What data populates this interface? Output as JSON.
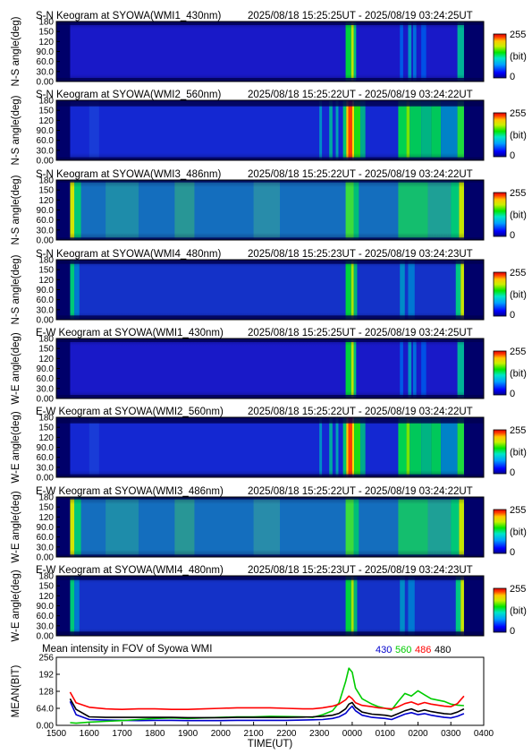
{
  "keograms": [
    {
      "title": "S-N Keogram at SYOWA(WMI1_430nm)",
      "time_range": "2025/08/18 15:25:25UT - 2025/08/19 03:24:25UT",
      "ylabel": "N-S angle(deg)",
      "profile": "n430"
    },
    {
      "title": "S-N Keogram at SYOWA(WMI2_560nm)",
      "time_range": "2025/08/18 15:25:22UT - 2025/08/19 03:24:22UT",
      "ylabel": "N-S angle(deg)",
      "profile": "g560"
    },
    {
      "title": "S-N Keogram at SYOWA(WMI3_486nm)",
      "time_range": "2025/08/18 15:25:22UT - 2025/08/19 03:24:22UT",
      "ylabel": "N-S angle(deg)",
      "profile": "h486"
    },
    {
      "title": "S-N Keogram at SYOWA(WMI4_480nm)",
      "time_range": "2025/08/18 15:25:23UT - 2025/08/19 03:24:23UT",
      "ylabel": "N-S angle(deg)",
      "profile": "n480"
    },
    {
      "title": "E-W Keogram at SYOWA(WMI1_430nm)",
      "time_range": "2025/08/18 15:25:25UT - 2025/08/19 03:24:25UT",
      "ylabel": "W-E angle(deg)",
      "profile": "n430"
    },
    {
      "title": "E-W Keogram at SYOWA(WMI2_560nm)",
      "time_range": "2025/08/18 15:25:22UT - 2025/08/19 03:24:22UT",
      "ylabel": "W-E angle(deg)",
      "profile": "g560"
    },
    {
      "title": "E-W Keogram at SYOWA(WMI3_486nm)",
      "time_range": "2025/08/18 15:25:22UT - 2025/08/19 03:24:22UT",
      "ylabel": "W-E angle(deg)",
      "profile": "h486"
    },
    {
      "title": "E-W Keogram at SYOWA(WMI4_480nm)",
      "time_range": "2025/08/18 15:25:23UT - 2025/08/19 03:24:23UT",
      "ylabel": "W-E angle(deg)",
      "profile": "n480"
    }
  ],
  "keogram_yticks": [
    "0.00",
    "30.0",
    "60.0",
    "90.0",
    "120",
    "150",
    "180"
  ],
  "keogram_ytick_values": [
    0,
    30,
    60,
    90,
    120,
    150,
    180
  ],
  "colorbar": {
    "max_label": "255",
    "unit_label": "(bit)",
    "min_label": "0",
    "range": [
      0,
      255
    ]
  },
  "chart_data": {
    "type": "line",
    "title": "Mean intensity in FOV of Syowa WMI",
    "xlabel": "TIME(UT)",
    "ylabel": "MEAN(BIT)",
    "xticks": [
      "1500",
      "1600",
      "1700",
      "1800",
      "1900",
      "2000",
      "2100",
      "2200",
      "2300",
      "0000",
      "0100",
      "0200",
      "0300",
      "0400"
    ],
    "xlim_hours_ut": [
      15,
      28
    ],
    "yticks": [
      "0.00",
      "64.0",
      "128",
      "192",
      "256"
    ],
    "ytick_values": [
      0,
      64,
      128,
      192,
      256
    ],
    "ylim": [
      0,
      256
    ],
    "x": [
      15.42,
      15.6,
      16.0,
      16.5,
      17.0,
      17.5,
      18.0,
      18.5,
      19.0,
      19.5,
      20.0,
      20.5,
      21.0,
      21.5,
      22.0,
      22.5,
      22.8,
      23.1,
      23.4,
      23.6,
      23.8,
      23.9,
      24.0,
      24.1,
      24.3,
      24.6,
      24.8,
      25.0,
      25.2,
      25.4,
      25.6,
      25.8,
      26.0,
      26.2,
      26.4,
      26.6,
      26.8,
      27.0,
      27.2,
      27.4
    ],
    "series": [
      {
        "name": "430",
        "color": "#0000cc",
        "values": [
          90,
          40,
          22,
          20,
          19,
          18,
          19,
          19,
          18,
          18,
          18,
          19,
          19,
          19,
          19,
          20,
          21,
          22,
          26,
          32,
          45,
          60,
          72,
          55,
          38,
          30,
          28,
          26,
          22,
          32,
          42,
          48,
          40,
          44,
          38,
          34,
          30,
          28,
          34,
          44
        ]
      },
      {
        "name": "560",
        "color": "#00cc00",
        "values": [
          10,
          8,
          12,
          15,
          18,
          22,
          26,
          28,
          26,
          28,
          30,
          32,
          32,
          34,
          33,
          32,
          30,
          40,
          55,
          85,
          165,
          215,
          200,
          140,
          100,
          80,
          70,
          64,
          58,
          90,
          120,
          110,
          130,
          115,
          100,
          95,
          90,
          80,
          76,
          74
        ]
      },
      {
        "name": "486",
        "color": "#ff0000",
        "values": [
          125,
          85,
          68,
          62,
          60,
          62,
          62,
          60,
          60,
          62,
          64,
          66,
          66,
          66,
          64,
          62,
          62,
          66,
          72,
          80,
          96,
          110,
          100,
          85,
          75,
          70,
          66,
          64,
          62,
          70,
          82,
          88,
          78,
          86,
          80,
          76,
          72,
          70,
          82,
          110
        ]
      },
      {
        "name": "480",
        "color": "#000000",
        "values": [
          100,
          60,
          32,
          30,
          30,
          30,
          30,
          30,
          29,
          29,
          29,
          30,
          30,
          30,
          30,
          31,
          32,
          34,
          38,
          45,
          62,
          80,
          86,
          68,
          50,
          42,
          40,
          38,
          34,
          44,
          55,
          62,
          52,
          58,
          52,
          48,
          44,
          42,
          50,
          62
        ]
      }
    ]
  }
}
